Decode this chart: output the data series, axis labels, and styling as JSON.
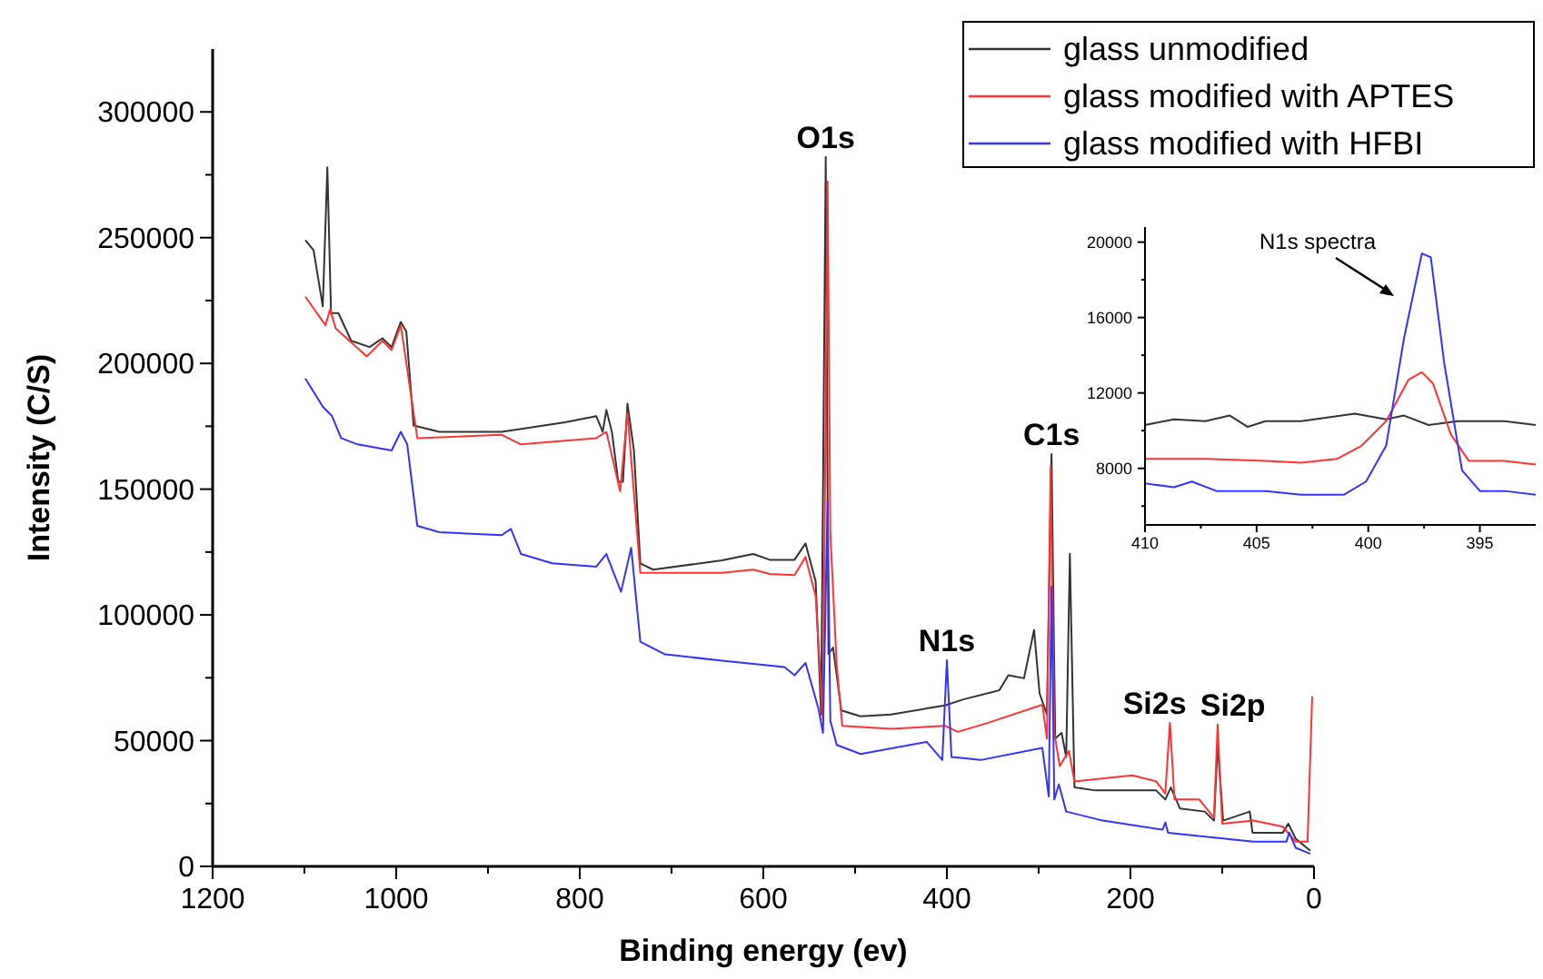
{
  "chart_data": [
    {
      "type": "line",
      "xlabel": "Binding energy (ev)",
      "ylabel": "Intensity (C/S)",
      "xlim": [
        1200,
        0
      ],
      "ylim": [
        0,
        325000
      ],
      "xticks": [
        1200,
        {
          "value": 1100,
          "label": null
        },
        1000,
        {
          "value": 900,
          "label": null
        },
        800,
        {
          "value": 700,
          "label": null
        },
        600,
        {
          "value": 500,
          "label": null
        },
        400,
        {
          "value": 300,
          "label": null
        },
        200,
        {
          "value": 100,
          "label": null
        },
        0
      ],
      "yticks": [
        0,
        {
          "value": 25000,
          "label": null
        },
        50000,
        {
          "value": 75000,
          "label": null
        },
        100000,
        {
          "value": 125000,
          "label": null
        },
        150000,
        {
          "value": 175000,
          "label": null
        },
        200000,
        {
          "value": 225000,
          "label": null
        },
        250000,
        {
          "value": 275000,
          "label": null
        },
        300000
      ],
      "legend": "top right",
      "marker": "none",
      "line_style": "solid",
      "annotations": [
        {
          "text": "O1s",
          "x": 532,
          "y": 282000
        },
        {
          "text": "N1s",
          "x": 400,
          "y": 82000
        },
        {
          "text": "C1s",
          "x": 286,
          "y": 163900
        },
        {
          "text": "Si2s",
          "x": 157,
          "y": 57100
        },
        {
          "text": "Si2p",
          "x": 105,
          "y": 56400
        }
      ],
      "series": [
        {
          "name": "glass unmodified",
          "color": "#333333",
          "x": [
            1099,
            1090,
            1080,
            1075,
            1071,
            1063,
            1049,
            1029,
            1015,
            1005,
            995,
            989,
            981,
            953,
            885,
            816,
            782,
            775,
            771,
            765,
            758,
            753,
            748,
            741,
            734,
            720,
            645,
            611,
            593,
            566,
            554,
            543,
            537,
            532,
            529,
            524,
            515,
            494,
            461,
            422,
            402,
            382,
            343,
            333,
            316,
            305,
            299,
            291,
            286,
            282,
            275,
            270,
            266,
            261,
            238,
            172,
            162,
            156,
            146,
            119,
            109,
            105,
            99,
            70,
            67,
            34,
            28,
            20,
            4
          ],
          "values": [
            249000,
            245000,
            222700,
            278000,
            220000,
            220000,
            209000,
            206500,
            210000,
            206500,
            216500,
            212700,
            175300,
            172800,
            172800,
            176600,
            179000,
            172800,
            181500,
            172800,
            152900,
            152900,
            184000,
            165400,
            120500,
            118000,
            121700,
            124200,
            121900,
            121900,
            128400,
            113400,
            60400,
            282000,
            84500,
            87000,
            62000,
            59700,
            60400,
            62800,
            64000,
            66400,
            70000,
            76000,
            74800,
            94000,
            68800,
            60400,
            163900,
            50800,
            53100,
            43500,
            124300,
            31400,
            30200,
            30200,
            26600,
            31400,
            23000,
            21800,
            18200,
            48300,
            18200,
            21800,
            13400,
            13400,
            17000,
            11000,
            6200
          ]
        },
        {
          "name": "glass modified with APTES",
          "color": "#ff3333",
          "x": [
            1099,
            1077,
            1072,
            1066,
            1032,
            1015,
            1005,
            995,
            977,
            885,
            864,
            782,
            771,
            756,
            748,
            734,
            645,
            611,
            593,
            566,
            554,
            543,
            535,
            530,
            527,
            520,
            514,
            461,
            402,
            388,
            355,
            296,
            291,
            287,
            283,
            277,
            267,
            261,
            198,
            172,
            162,
            157,
            152,
            125,
            109,
            105,
            100,
            66,
            34,
            20,
            7,
            2
          ],
          "values": [
            226500,
            215200,
            221500,
            214000,
            202800,
            209000,
            205300,
            215200,
            170300,
            171600,
            167800,
            170300,
            172800,
            149100,
            180300,
            116700,
            116700,
            118000,
            116300,
            115800,
            123000,
            107400,
            58000,
            272400,
            132700,
            79800,
            55900,
            54700,
            55900,
            53500,
            57100,
            64300,
            50800,
            159100,
            53100,
            39900,
            45900,
            33800,
            36200,
            33800,
            29000,
            57100,
            26600,
            26600,
            19400,
            56400,
            17000,
            18200,
            15800,
            9800,
            9800,
            67600
          ]
        },
        {
          "name": "glass modified with HFBI",
          "color": "#3333ff",
          "x": [
            1099,
            1080,
            1070,
            1060,
            1042,
            1005,
            995,
            988,
            977,
            953,
            885,
            875,
            864,
            830,
            782,
            771,
            755,
            744,
            734,
            707,
            645,
            577,
            566,
            554,
            540,
            535,
            530,
            527,
            520,
            494,
            422,
            405,
            400,
            395,
            363,
            296,
            289,
            286,
            283,
            278,
            270,
            230,
            165,
            162,
            159,
            66,
            30,
            27,
            20,
            4
          ],
          "values": [
            194000,
            182800,
            179100,
            170300,
            167800,
            165400,
            172800,
            167800,
            135400,
            132900,
            131700,
            134200,
            124200,
            120500,
            119200,
            124200,
            109200,
            126700,
            89300,
            84300,
            81800,
            79300,
            76000,
            80900,
            62800,
            53100,
            145300,
            58000,
            48300,
            44700,
            49500,
            42300,
            82000,
            43500,
            42300,
            47100,
            27800,
            111200,
            26600,
            32600,
            21800,
            18200,
            14600,
            17500,
            13400,
            9800,
            9800,
            13400,
            7400,
            5000
          ]
        }
      ]
    },
    {
      "type": "line",
      "xlim": [
        410,
        392.5
      ],
      "ylim": [
        5000,
        20800
      ],
      "xticks": [
        410,
        {
          "value": 407.5,
          "label": null
        },
        405,
        {
          "value": 402.5,
          "label": null
        },
        400,
        {
          "value": 397.5,
          "label": null
        },
        395
      ],
      "yticks": [
        {
          "value": 6000,
          "label": null
        },
        8000,
        {
          "value": 10000,
          "label": null
        },
        12000,
        {
          "value": 14000,
          "label": null
        },
        16000,
        {
          "value": 18000,
          "label": null
        },
        20000
      ],
      "marker": "none",
      "line_style": "solid",
      "annotations": [
        "N1s spectra"
      ],
      "series": [
        {
          "color": "#333333",
          "x": [
            410,
            408.7,
            407.3,
            406.2,
            405.4,
            404.6,
            403,
            400.6,
            399.2,
            398.4,
            397.3,
            396,
            393.9,
            392.5
          ],
          "values": [
            10300,
            10600,
            10500,
            10800,
            10200,
            10500,
            10500,
            10900,
            10600,
            10800,
            10300,
            10500,
            10500,
            10300
          ]
        },
        {
          "color": "#ff3333",
          "x": [
            410,
            407.3,
            404.6,
            403,
            401.4,
            400.3,
            399.2,
            398.2,
            397.6,
            397.1,
            396.3,
            395.5,
            393.9,
            392.5
          ],
          "values": [
            8500,
            8500,
            8400,
            8300,
            8500,
            9200,
            10500,
            12700,
            13100,
            12500,
            9800,
            8400,
            8400,
            8200
          ]
        },
        {
          "color": "#3333ff",
          "x": [
            410,
            408.7,
            407.9,
            406.8,
            404.6,
            403,
            401.1,
            400.1,
            399.2,
            398.4,
            397.6,
            397.2,
            396.6,
            395.8,
            395,
            393.9,
            392.5
          ],
          "values": [
            7200,
            7000,
            7300,
            6800,
            6800,
            6600,
            6600,
            7300,
            9200,
            14900,
            19400,
            19200,
            13600,
            7900,
            6800,
            6800,
            6600
          ]
        }
      ]
    }
  ]
}
